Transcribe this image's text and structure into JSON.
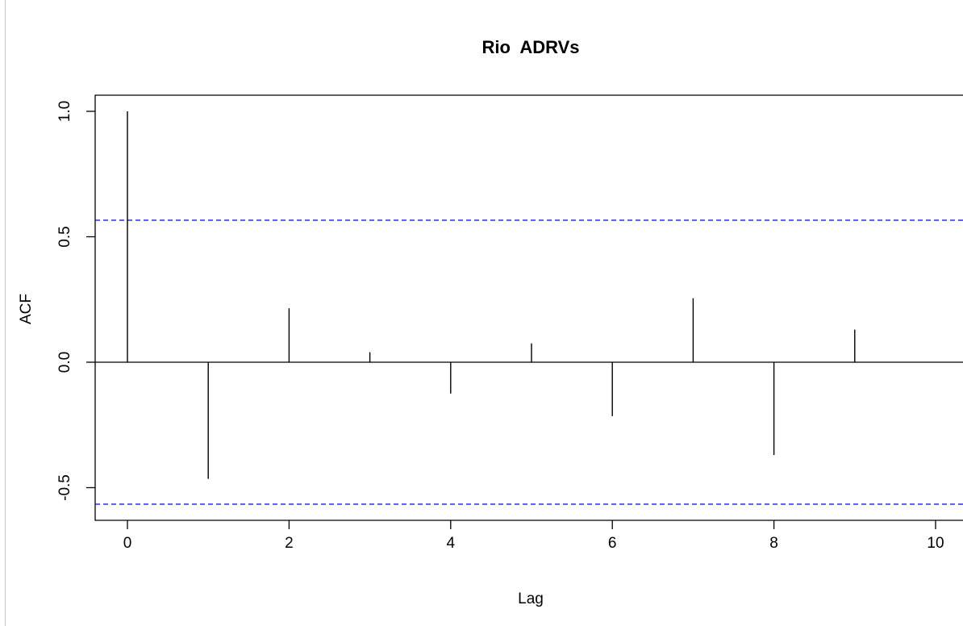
{
  "chart_data": {
    "type": "bar",
    "title": "Rio  ADRVs",
    "xlabel": "Lag",
    "ylabel": "ACF",
    "x_ticks": [
      "0",
      "2",
      "4",
      "6",
      "8",
      "10"
    ],
    "y_ticks": [
      "-0.5",
      "0.0",
      "0.5",
      "1.0"
    ],
    "xlim": [
      -0.4,
      10.35
    ],
    "ylim": [
      -0.63,
      1.07
    ],
    "series": [
      {
        "x": [
          0,
          1,
          2,
          3,
          4,
          5,
          6,
          7,
          8,
          9
        ],
        "values": [
          1.0,
          -0.465,
          0.215,
          0.04,
          -0.125,
          0.075,
          -0.215,
          0.255,
          -0.37,
          0.13
        ]
      }
    ],
    "confidence_bound": 0.566,
    "colors": {
      "bars": "#000000",
      "confidence_lines": "#0000ff",
      "axis": "#000000"
    },
    "grid": false
  }
}
